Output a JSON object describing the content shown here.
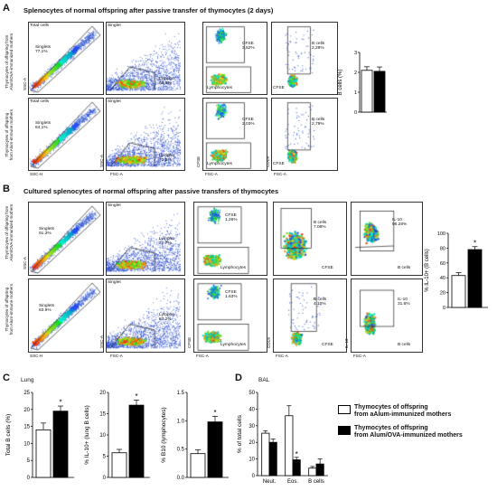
{
  "panelA": {
    "letter": "A",
    "title": "Splenocytes of normal offspring after passive transfer of thymocytes (2 days)",
    "row1_label": [
      "Thymocytes of offspring from",
      "Alum/OVA-immunized mothers"
    ],
    "row2_label": [
      "Thymocytes of offspring",
      "from Alum-immune mothers"
    ],
    "gates_r1": {
      "total": "Total cells",
      "singlets": "Singlets",
      "singlets_val": "77,1%",
      "singlet": "Singlet",
      "lympho": "Lympho",
      "lympho_val": "63,6%",
      "cfse": "CFSE",
      "cfse_val": "3,52%",
      "lymphocytes": "Lymphocytes",
      "bcells": "B cells",
      "bcells_val": "2,28%",
      "cfse_axis": "CFSE"
    },
    "gates_r2": {
      "total": "Total cells",
      "singlets": "Singlets",
      "singlets_val": "84,1%",
      "singlet": "Singlet",
      "lympho": "Lympho",
      "lympho_val": "73,2%",
      "cfse": "CFSE",
      "cfse_val": "2,03%",
      "lymphocytes": "Lymphocytes",
      "bcells": "B cells",
      "bcells_val": "2,79%",
      "cfse_axis": "CFSE"
    },
    "axes": {
      "ssc_a": "SSC-A",
      "ssc_h": "SSC-H",
      "fsc_a": "FSC-A",
      "cfse": "CFSE",
      "cd19": "CD19"
    }
  },
  "panelB": {
    "letter": "B",
    "title": "Cultured splenocytes of normal offspring after passive transfers of thymocytes",
    "row1_label": [
      "Thymocytes of offspring from",
      "Alum/OVA-immunized mothers"
    ],
    "row2_label": [
      "Thymocytes of offspring",
      "from Alum-immune mothers"
    ],
    "gates_r1": {
      "singlets": "Singlets",
      "singlets_val": "91.3%",
      "singlet": "Singlet",
      "lympho": "Lympho",
      "lympho_val": "77.7%",
      "cfse": "CFSE",
      "cfse_val": "1.26%",
      "lymphocytes": "Lymphocytes",
      "bcells": "B cells",
      "bcells_val": "7.08%",
      "cfse_axis": "CFSE",
      "il10": "IL-10",
      "il10_val": "96.28%",
      "bcells_axis": "B cells"
    },
    "gates_r2": {
      "singlets": "Singlets",
      "singlets_val": "83.9%",
      "singlet": "Singlet",
      "lympho": "Lympho",
      "lympho_val": "87.2%",
      "cfse": "CFSE",
      "cfse_val": "1.63%",
      "lymphocytes": "Lymphocytes",
      "bcells": "B cells",
      "bcells_val": "4.10%",
      "cfse_axis": "CFSE",
      "il10": "IL-10",
      "il10_val": "31.6%",
      "bcells_axis": "B cells"
    },
    "axes": {
      "ssc_a": "SSC-A",
      "ssc_h": "SSC-H",
      "fsc_a": "FSC-A",
      "cfse": "CFSE",
      "cd19": "CD19",
      "il10": "IL-10"
    }
  },
  "panelC": {
    "letter": "C",
    "subtitle": "Lung"
  },
  "panelD": {
    "letter": "D",
    "subtitle": "BAL"
  },
  "legend": {
    "white_label": [
      "Thymocytes of offspring",
      "from aAlum-immunized mothers"
    ],
    "black_label": [
      "Thymocytes of offspring",
      "from Alum/OVA-immunized mothers"
    ]
  },
  "colors": {
    "black_bar": "#000000",
    "white_bar": "#ffffff",
    "density_hot": "#e31a1c",
    "density_cold": "#1f4fd6"
  },
  "chart_data": [
    {
      "id": "A_bcells",
      "type": "bar",
      "categories": [
        "white",
        "black"
      ],
      "values": [
        2.1,
        2.05
      ],
      "errors": [
        0.18,
        0.22
      ],
      "ylabel": "B cells (%)",
      "ylim": [
        0,
        3
      ],
      "yticks": [
        0,
        1,
        2,
        3
      ]
    },
    {
      "id": "B_il10",
      "type": "bar",
      "categories": [
        "white",
        "black"
      ],
      "values": [
        43,
        78
      ],
      "errors": [
        4,
        4
      ],
      "ylabel": "% IL-10+ (B cells)",
      "ylim": [
        0,
        100
      ],
      "yticks": [
        0,
        20,
        40,
        60,
        80,
        100
      ],
      "significance": [
        "",
        "*"
      ]
    },
    {
      "id": "C_total_b",
      "type": "bar",
      "categories": [
        "white",
        "black"
      ],
      "values": [
        14,
        19.5
      ],
      "errors": [
        2,
        1.5
      ],
      "ylabel": "Total B cells (%)",
      "ylim": [
        0,
        25
      ],
      "yticks": [
        0,
        5,
        10,
        15,
        20,
        25
      ],
      "significance": [
        "",
        "*"
      ]
    },
    {
      "id": "C_il10",
      "type": "bar",
      "categories": [
        "white",
        "black"
      ],
      "values": [
        5.8,
        17
      ],
      "errors": [
        0.8,
        1.2
      ],
      "ylabel": "% IL-10+ (lung B cells)",
      "ylim": [
        0,
        20
      ],
      "yticks": [
        0,
        5,
        10,
        15,
        20
      ],
      "significance": [
        "",
        "*"
      ]
    },
    {
      "id": "C_b10",
      "type": "bar",
      "categories": [
        "white",
        "black"
      ],
      "values": [
        0.42,
        0.98
      ],
      "errors": [
        0.07,
        0.1
      ],
      "ylabel": "% B10 (lymphocytes)",
      "ylim": [
        0,
        1.5
      ],
      "yticks": [
        0.0,
        0.5,
        1.0,
        1.5
      ],
      "significance": [
        "",
        "*"
      ]
    },
    {
      "id": "D_bal",
      "type": "bar",
      "categories": [
        "Neut.",
        "Eos.",
        "B cells"
      ],
      "series": [
        {
          "values": [
            25.5,
            36,
            4.5
          ],
          "errors": [
            1.5,
            6,
            1
          ]
        },
        {
          "values": [
            20,
            9.5,
            7
          ],
          "errors": [
            2,
            1.5,
            3
          ]
        }
      ],
      "ylabel": "% of total cells",
      "ylim": [
        0,
        50
      ],
      "yticks": [
        0,
        10,
        20,
        30,
        40,
        50
      ],
      "significance": [
        "",
        "*",
        ""
      ]
    }
  ]
}
